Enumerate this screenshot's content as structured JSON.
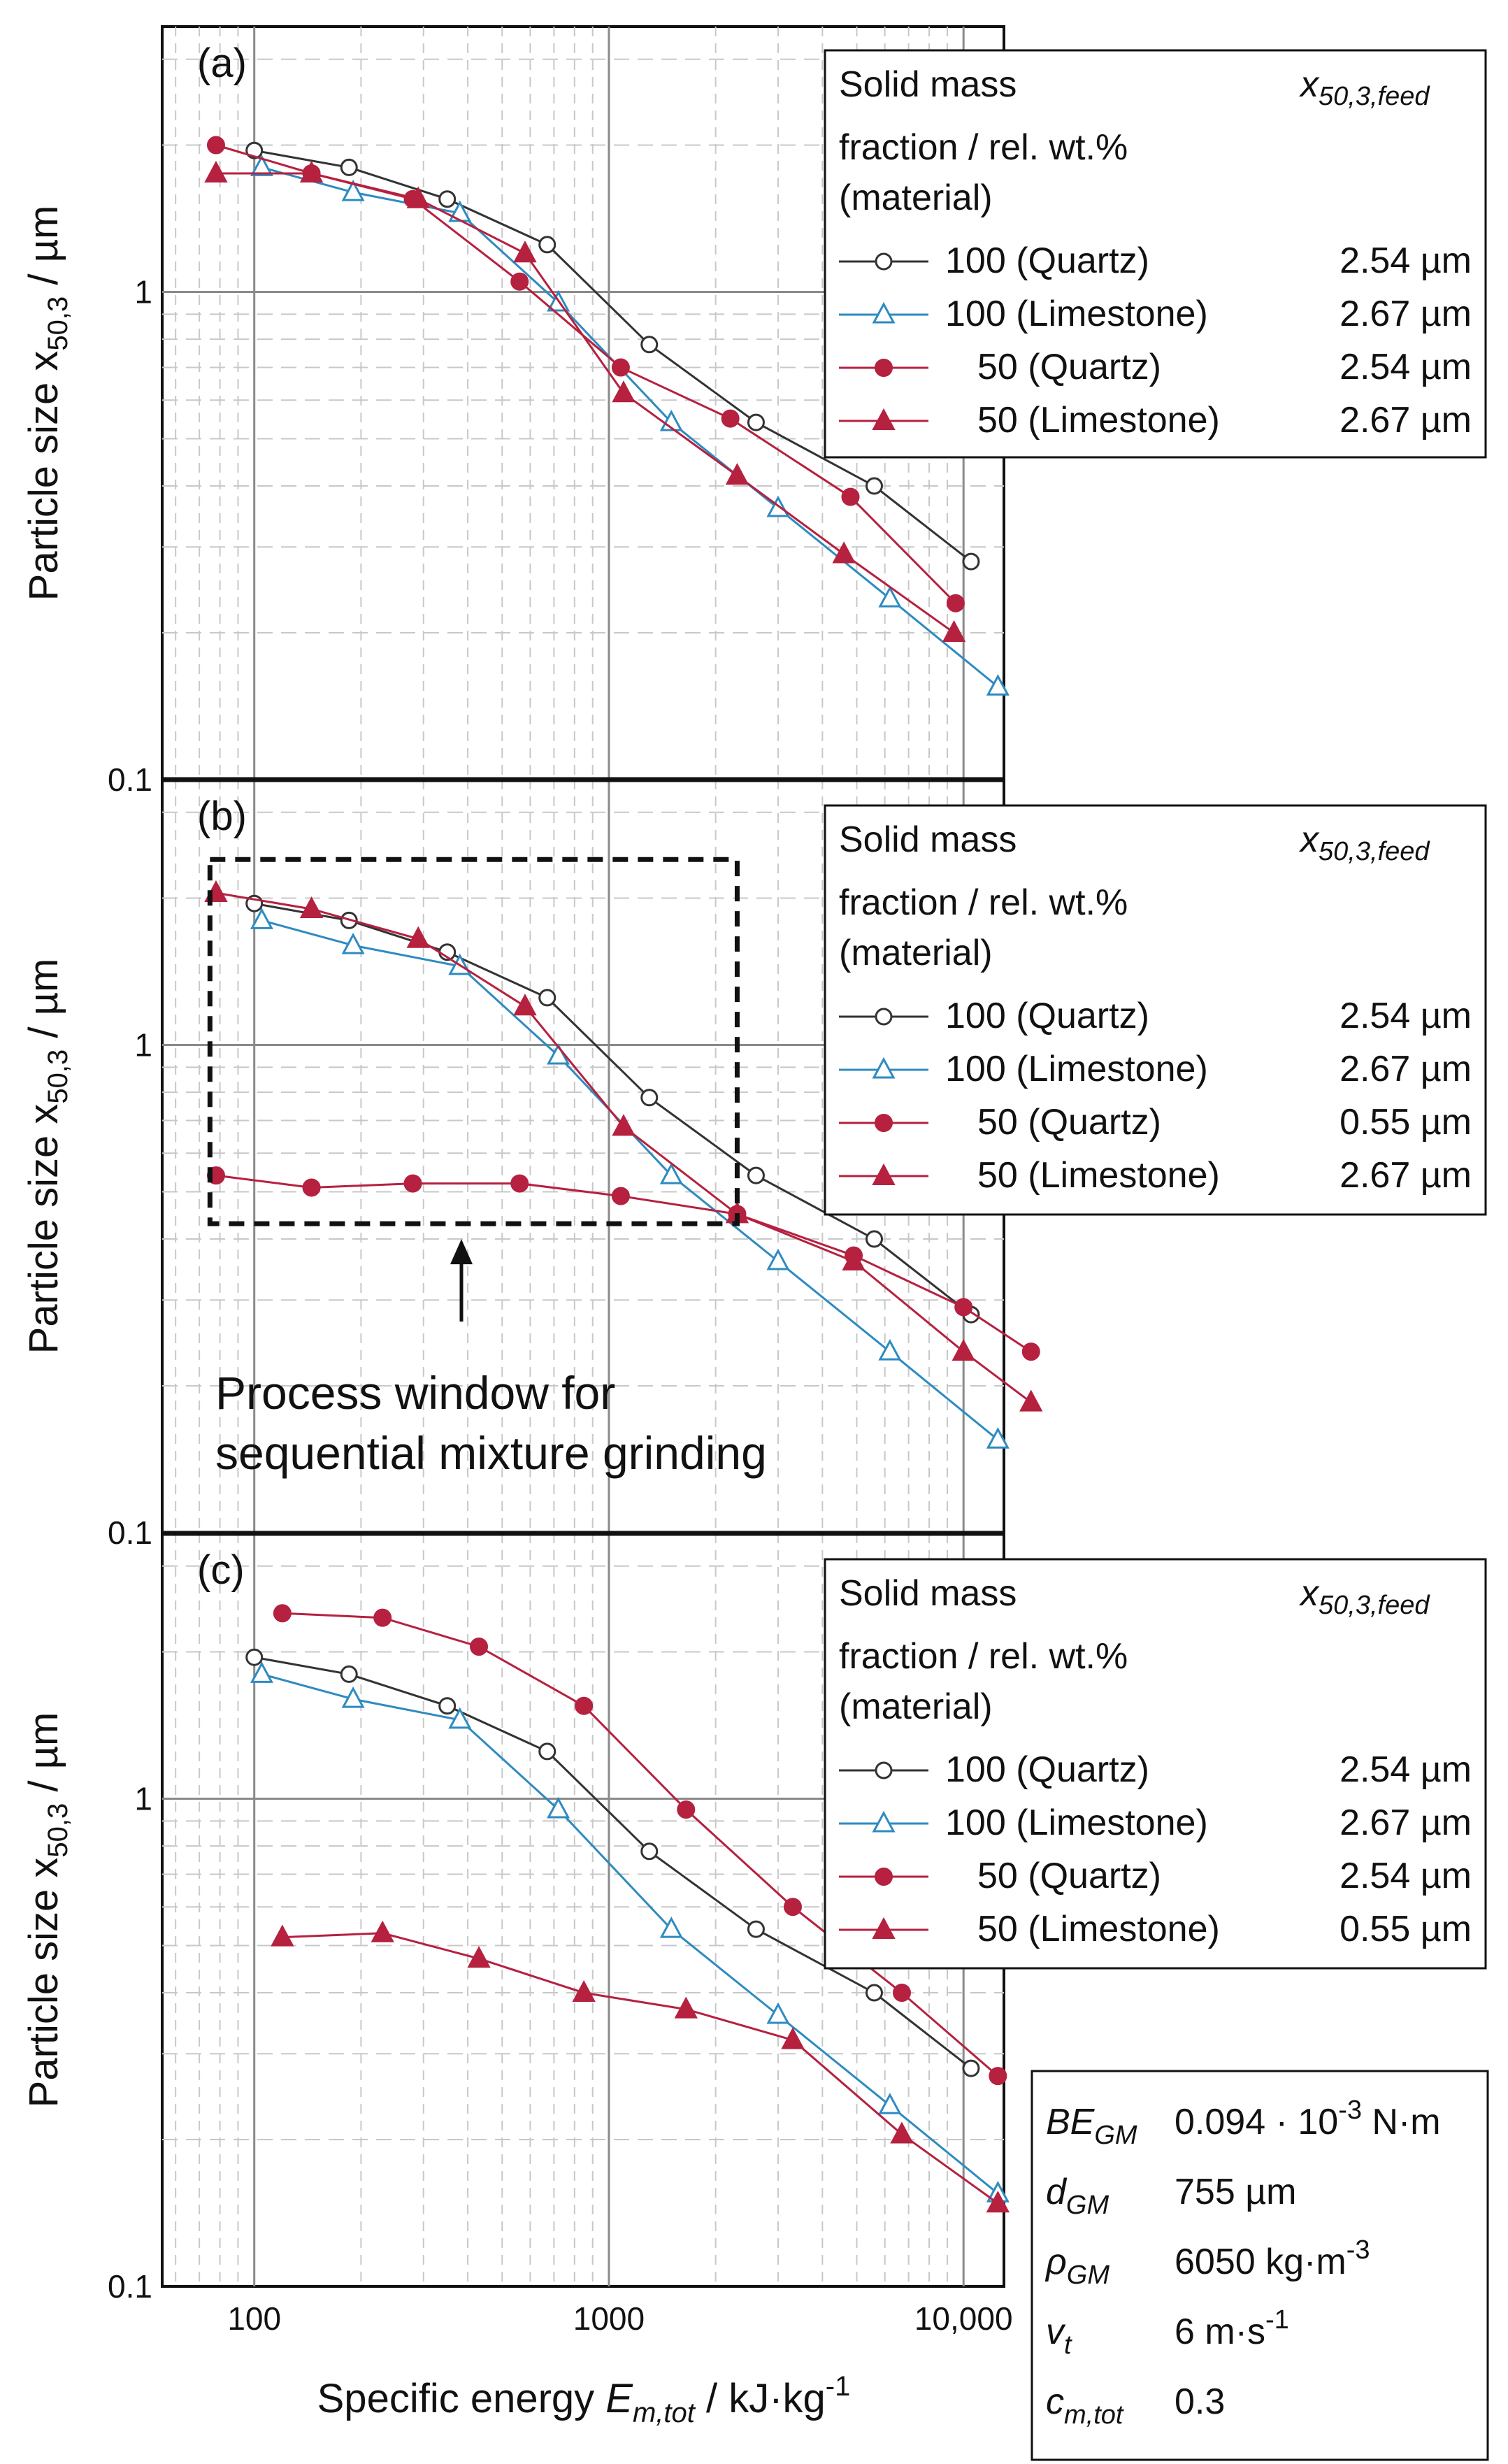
{
  "chart_data": {
    "type": "line",
    "xlabel": "Specific energy Eₘ,tot / kJ·kg⁻¹",
    "xlabel_parts": {
      "pre": "Specific energy ",
      "sym": "E",
      "sub": "m,tot",
      "post": " / kJ·kg",
      "sup": "-1"
    },
    "ylabel_parts": {
      "pre": "Particle size ",
      "sym": "x",
      "sub": "50,3",
      "post": " / µm"
    },
    "xscale": "log",
    "yscale": "log",
    "xlim": [
      55,
      13000
    ],
    "ylim": [
      0.1,
      3.5
    ],
    "xticks": [
      100,
      1000,
      10000
    ],
    "xtick_labels": [
      "100",
      "1000",
      "10,000"
    ],
    "yticks": [
      0.1,
      1
    ],
    "ytick_labels": [
      "0.1",
      "1"
    ],
    "panels": [
      {
        "label": "(a)",
        "legend_header": {
          "line1": "Solid mass",
          "line2": "fraction / rel. wt.%",
          "line3": "(material)",
          "col2_sym": "x",
          "col2_sub": "50,3,feed"
        },
        "series": [
          {
            "name": "100 (Quartz)",
            "feed": "2.54 µm",
            "color": "#333333",
            "marker": "open-circle",
            "x": [
              100,
              185,
              350,
              670,
              1300,
              2600,
              5600,
              10500
            ],
            "y": [
              1.95,
              1.8,
              1.55,
              1.25,
              0.78,
              0.54,
              0.4,
              0.28
            ]
          },
          {
            "name": "100 (Limestone)",
            "feed": "2.67 µm",
            "color": "#2e8bc0",
            "marker": "open-triangle",
            "x": [
              105,
              190,
              380,
              720,
              1500,
              3000,
              6200,
              12500
            ],
            "y": [
              1.8,
              1.6,
              1.45,
              0.95,
              0.54,
              0.36,
              0.235,
              0.155
            ]
          },
          {
            "name": "50 (Quartz)",
            "feed": "2.54 µm",
            "color": "#b5213f",
            "marker": "filled-circle",
            "x": [
              78,
              145,
              280,
              560,
              1080,
              2200,
              4800,
              9500
            ],
            "y": [
              2.0,
              1.75,
              1.55,
              1.05,
              0.7,
              0.55,
              0.38,
              0.23
            ]
          },
          {
            "name": "50 (Limestone)",
            "feed": "2.67 µm",
            "color": "#b5213f",
            "marker": "filled-triangle",
            "x": [
              78,
              145,
              290,
              580,
              1100,
              2300,
              4600,
              9400
            ],
            "y": [
              1.75,
              1.75,
              1.55,
              1.2,
              0.62,
              0.42,
              0.29,
              0.2
            ]
          }
        ]
      },
      {
        "label": "(b)",
        "legend_header": {
          "line1": "Solid mass",
          "line2": "fraction / rel. wt.%",
          "line3": "(material)",
          "col2_sym": "x",
          "col2_sub": "50,3,feed"
        },
        "series": [
          {
            "name": "100 (Quartz)",
            "feed": "2.54 µm",
            "color": "#333333",
            "marker": "open-circle",
            "x": [
              100,
              185,
              350,
              670,
              1300,
              2600,
              5600,
              10500
            ],
            "y": [
              1.95,
              1.8,
              1.55,
              1.25,
              0.78,
              0.54,
              0.4,
              0.28
            ]
          },
          {
            "name": "100 (Limestone)",
            "feed": "2.67 µm",
            "color": "#2e8bc0",
            "marker": "open-triangle",
            "x": [
              105,
              190,
              380,
              720,
              1500,
              3000,
              6200,
              12500
            ],
            "y": [
              1.8,
              1.6,
              1.45,
              0.95,
              0.54,
              0.36,
              0.235,
              0.155
            ]
          },
          {
            "name": "50 (Quartz)",
            "feed": "0.55 µm",
            "color": "#b5213f",
            "marker": "filled-circle",
            "x": [
              78,
              145,
              280,
              560,
              1080,
              2300,
              4900,
              10000,
              15500
            ],
            "y": [
              0.54,
              0.51,
              0.52,
              0.52,
              0.49,
              0.45,
              0.37,
              0.29,
              0.235
            ]
          },
          {
            "name": "50 (Limestone)",
            "feed": "2.67 µm",
            "color": "#b5213f",
            "marker": "filled-triangle",
            "x": [
              78,
              145,
              290,
              580,
              1100,
              2300,
              4900,
              10000,
              15500
            ],
            "y": [
              2.05,
              1.9,
              1.65,
              1.2,
              0.68,
              0.45,
              0.36,
              0.235,
              0.185
            ]
          }
        ],
        "annotation": {
          "line1": "Process window for",
          "line2": "sequential mixture grinding",
          "box_x": [
            75,
            2300
          ],
          "box_y": [
            0.43,
            2.4
          ]
        }
      },
      {
        "label": "(c)",
        "legend_header": {
          "line1": "Solid mass",
          "line2": "fraction / rel. wt.%",
          "line3": "(material)",
          "col2_sym": "x",
          "col2_sub": "50,3,feed"
        },
        "series": [
          {
            "name": "100 (Quartz)",
            "feed": "2.54 µm",
            "color": "#333333",
            "marker": "open-circle",
            "x": [
              100,
              185,
              350,
              670,
              1300,
              2600,
              5600,
              10500
            ],
            "y": [
              1.95,
              1.8,
              1.55,
              1.25,
              0.78,
              0.54,
              0.4,
              0.28
            ]
          },
          {
            "name": "100 (Limestone)",
            "feed": "2.67 µm",
            "color": "#2e8bc0",
            "marker": "open-triangle",
            "x": [
              105,
              190,
              380,
              720,
              1500,
              3000,
              6200,
              12500
            ],
            "y": [
              1.8,
              1.6,
              1.45,
              0.95,
              0.54,
              0.36,
              0.235,
              0.155
            ]
          },
          {
            "name": "50 (Quartz)",
            "feed": "2.54 µm",
            "color": "#b5213f",
            "marker": "filled-circle",
            "x": [
              120,
              230,
              430,
              850,
              1650,
              3300,
              6700,
              12500
            ],
            "y": [
              2.4,
              2.35,
              2.05,
              1.55,
              0.95,
              0.6,
              0.4,
              0.27
            ]
          },
          {
            "name": "50 (Limestone)",
            "feed": "0.55 µm",
            "color": "#b5213f",
            "marker": "filled-triangle",
            "x": [
              120,
              230,
              430,
              850,
              1650,
              3300,
              6700,
              12500
            ],
            "y": [
              0.52,
              0.53,
              0.47,
              0.4,
              0.37,
              0.32,
              0.205,
              0.148
            ]
          }
        ]
      }
    ],
    "params": [
      {
        "sym": "BE",
        "sub": "GM",
        "value": "0.094 · 10",
        "sup": "-3",
        "unit": " N·m"
      },
      {
        "sym": "d",
        "sub": "GM",
        "value": "755 µm",
        "sup": "",
        "unit": ""
      },
      {
        "sym": "ρ",
        "sub": "GM",
        "value": "6050 kg·m",
        "sup": "-3",
        "unit": ""
      },
      {
        "sym": "v",
        "sub": "t",
        "value": "6 m·s",
        "sup": "-1",
        "unit": ""
      },
      {
        "sym": "c",
        "sub": "m,tot",
        "value": "0.3",
        "sup": "",
        "unit": ""
      }
    ]
  }
}
